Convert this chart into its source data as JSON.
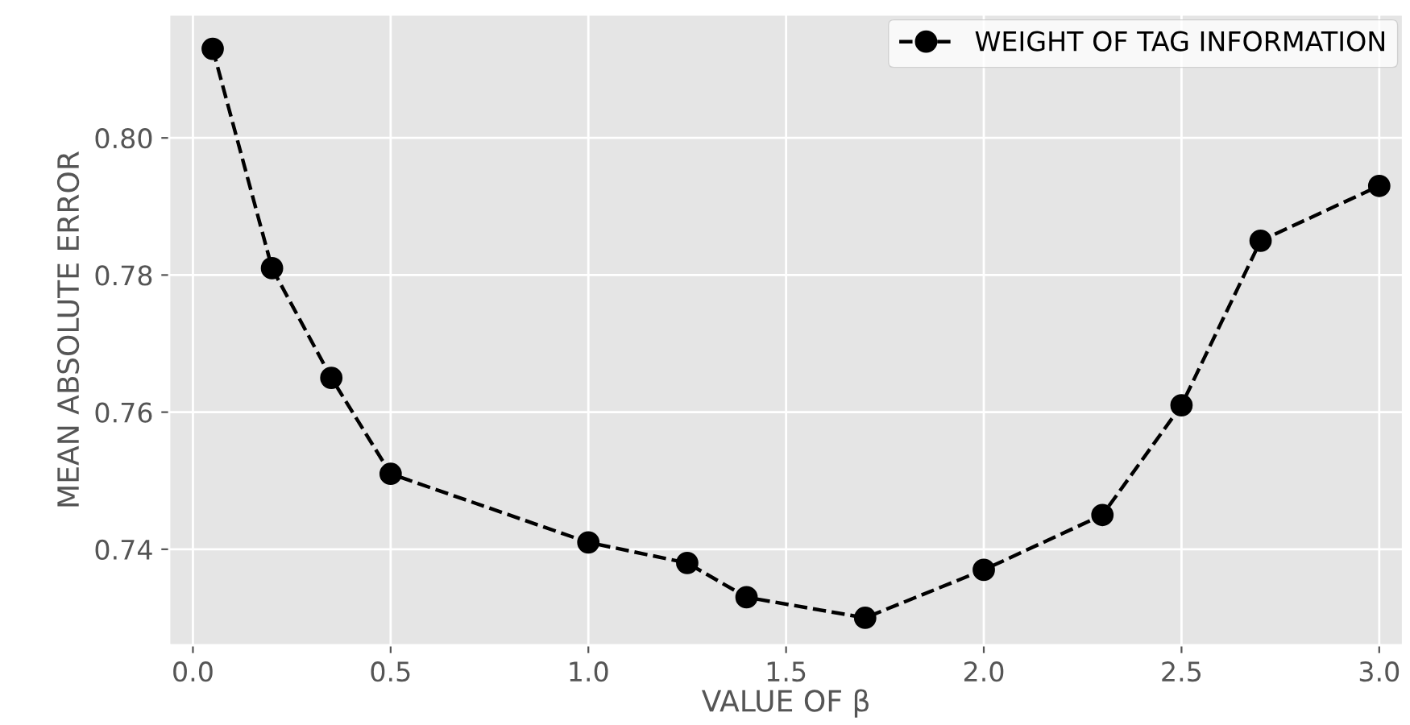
{
  "chart_data": {
    "type": "line",
    "xlabel": "VALUE OF β",
    "ylabel": "MEAN ABSOLUTE ERROR",
    "x": [
      0.05,
      0.2,
      0.35,
      0.5,
      1.0,
      1.25,
      1.4,
      1.7,
      2.0,
      2.3,
      2.5,
      2.7,
      3.0
    ],
    "series": [
      {
        "name": "WEIGHT OF TAG INFORMATION",
        "color": "#000000",
        "values": [
          0.813,
          0.781,
          0.765,
          0.751,
          0.741,
          0.738,
          0.733,
          0.73,
          0.737,
          0.745,
          0.761,
          0.785,
          0.793
        ]
      }
    ],
    "xlim": [
      -0.06,
      3.06
    ],
    "ylim": [
      0.726,
      0.818
    ],
    "xticks": [
      {
        "value": 0.0,
        "label": "0.0"
      },
      0.5,
      {
        "value": 1.0,
        "label": "1.0"
      },
      1.5,
      {
        "value": 2.0,
        "label": "2.0"
      },
      2.5,
      {
        "value": 3.0,
        "label": "3.0"
      }
    ],
    "yticks": [
      0.74,
      0.76,
      0.78,
      {
        "value": 0.8,
        "label": "0.80"
      }
    ],
    "grid": true,
    "legend": "top right",
    "marker": "circle",
    "line_style": "dashed"
  }
}
